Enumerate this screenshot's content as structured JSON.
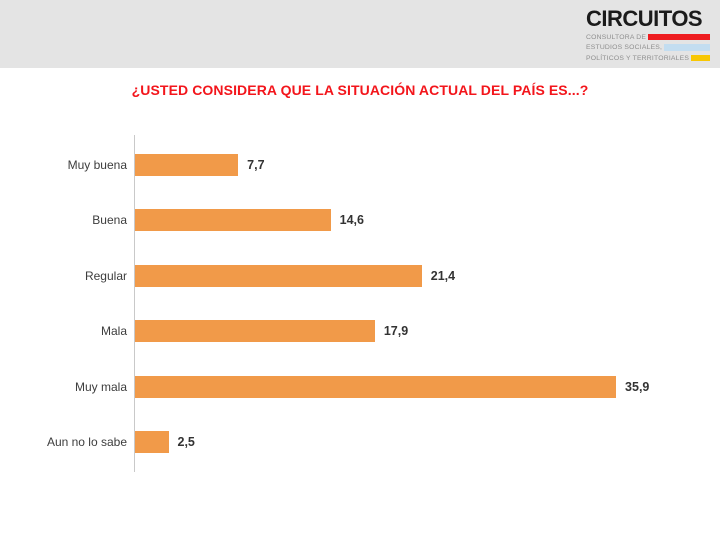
{
  "header": {
    "bg_color": "#e4e4e4",
    "logo": {
      "name": "CIRCUITOS",
      "lines": [
        {
          "text": "CONSULTORA DE",
          "bar_color": "#ee1c20"
        },
        {
          "text": "ESTUDIOS SOCIALES,",
          "bar_color": "#c3ddf0"
        },
        {
          "text": "POLÍTICOS Y TERRITORIALES",
          "bar_color": "#f8c703"
        }
      ]
    }
  },
  "title": {
    "text": "¿USTED CONSIDERA QUE LA SITUACIÓN ACTUAL DEL PAÍS ES...?",
    "color": "#f3151b"
  },
  "chart_data": {
    "type": "bar",
    "orientation": "horizontal",
    "title": "¿USTED CONSIDERA QUE LA SITUACIÓN ACTUAL DEL PAÍS ES...?",
    "categories": [
      "Muy buena",
      "Buena",
      "Regular",
      "Mala",
      "Muy mala",
      "Aun no lo sabe"
    ],
    "values": [
      7.7,
      14.6,
      21.4,
      17.9,
      35.9,
      2.5
    ],
    "value_labels": [
      "7,7",
      "14,6",
      "21,4",
      "17,9",
      "35,9",
      "2,5"
    ],
    "bar_color": "#f19a49",
    "axis_color": "#c9c9c9",
    "xlim": [
      0,
      40
    ],
    "grid": false,
    "legend": false
  }
}
